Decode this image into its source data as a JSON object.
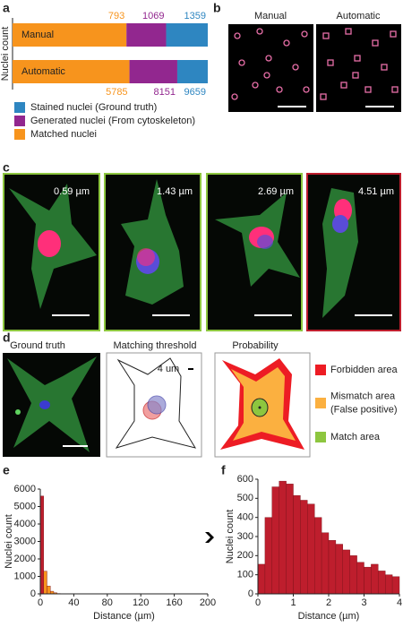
{
  "panel_labels": [
    "a",
    "b",
    "c",
    "d",
    "e",
    "f"
  ],
  "chart_data": [
    {
      "type": "stacked-boundaries",
      "y_label": "Nuclei count",
      "categories": [
        "Manual",
        "Automatic"
      ],
      "series": [
        {
          "name": "Matched nuclei",
          "color": "#f7941d",
          "values": [
            793,
            5785
          ]
        },
        {
          "name": "Generated nuclei (From cytoskeleton)",
          "color": "#92278f",
          "values": [
            1069,
            8151
          ]
        },
        {
          "name": "Stained nuclei (Ground truth)",
          "color": "#2e86c1",
          "values": [
            1359,
            9659
          ]
        }
      ]
    },
    {
      "type": "histogram",
      "x_label": "Distance (µm)",
      "y_label": "Nuclei count",
      "bins": [
        0,
        4,
        8,
        12,
        16,
        20,
        24
      ],
      "values": [
        5600,
        1300,
        450,
        150,
        60,
        20
      ],
      "colors": [
        "#be1e2d",
        "#f7941d",
        "#f7941d",
        "#f7941d",
        "#f7941d",
        "#f7941d"
      ],
      "xlim": [
        0,
        200
      ],
      "xticks": [
        0,
        40,
        80,
        120,
        160,
        200
      ],
      "ylim": [
        0,
        6000
      ],
      "yticks": [
        0,
        1000,
        2000,
        3000,
        4000,
        5000,
        6000
      ]
    },
    {
      "type": "histogram",
      "x_label": "Distance (µm)",
      "y_label": "Nuclei count",
      "bins": [
        0,
        0.2,
        0.4,
        0.6,
        0.8,
        1.0,
        1.2,
        1.4,
        1.6,
        1.8,
        2.0,
        2.2,
        2.4,
        2.6,
        2.8,
        3.0,
        3.2,
        3.4,
        3.6,
        3.8,
        4.0
      ],
      "values": [
        155,
        400,
        560,
        590,
        575,
        515,
        490,
        470,
        400,
        320,
        280,
        260,
        230,
        200,
        165,
        140,
        155,
        120,
        100,
        90
      ],
      "color": "#be1e2d",
      "xlim": [
        0,
        4
      ],
      "xticks": [
        0,
        1,
        2,
        3,
        4
      ],
      "ylim": [
        0,
        600
      ],
      "yticks": [
        0,
        100,
        200,
        300,
        400,
        500,
        600
      ]
    }
  ],
  "panel_b": {
    "labels": [
      "Manual",
      "Automatic"
    ]
  },
  "panel_c": {
    "labels": [
      "0.59 µm",
      "1.43 µm",
      "2.69 µm",
      "4.51 µm"
    ]
  },
  "panel_d": {
    "titles": [
      "Ground truth",
      "Matching threshold",
      "Probability"
    ],
    "scale_label": "4 um",
    "legend": [
      {
        "lines": [
          "Forbidden area"
        ],
        "color": "#ed1c24"
      },
      {
        "lines": [
          "Mismatch area",
          "(False positive)"
        ],
        "color": "#fbb040"
      },
      {
        "lines": [
          "Match area"
        ],
        "color": "#8dc63f"
      }
    ]
  }
}
